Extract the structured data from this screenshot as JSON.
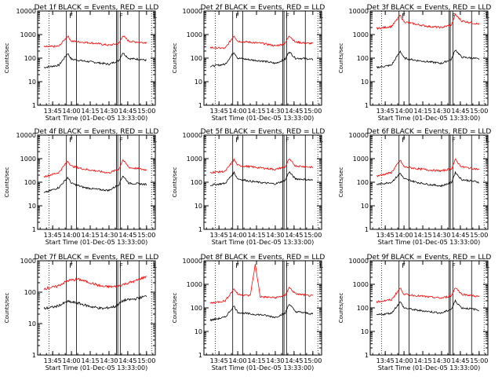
{
  "figure": {
    "shared": {
      "ylabel": "Counts/sec",
      "xlabel": "Start Time (01-Dec-05 13:33:00)",
      "xticklabels": [
        "13:45",
        "14:00",
        "14:15",
        "14:30",
        "14:45",
        "15:00"
      ],
      "yticklabels": [
        "1",
        "10",
        "100",
        "1000",
        "10000"
      ],
      "corner_marks": [
        "F",
        "F",
        "L"
      ],
      "series_colors": {
        "events": "#000000",
        "lld": "#ff0000"
      }
    }
  },
  "chart_data": [
    {
      "type": "line",
      "title": "Det 1f BLACK = Events, RED = LLD",
      "yscale": "log",
      "ylim": [
        1,
        10000
      ],
      "xlim": [
        "13:33",
        "15:07"
      ],
      "series": [
        {
          "values_at": [
            [
              "13:38",
              40
            ],
            [
              "13:50",
              50
            ],
            [
              "13:57",
              160
            ],
            [
              "14:00",
              90
            ],
            [
              "14:10",
              75
            ],
            [
              "14:20",
              65
            ],
            [
              "14:30",
              55
            ],
            [
              "14:38",
              80
            ],
            [
              "14:41",
              170
            ],
            [
              "14:46",
              95
            ],
            [
              "14:55",
              90
            ],
            [
              "15:00",
              80
            ]
          ]
        },
        {
          "values_at": [
            [
              "13:38",
              300
            ],
            [
              "13:50",
              320
            ],
            [
              "13:57",
              870
            ],
            [
              "14:00",
              520
            ],
            [
              "14:10",
              470
            ],
            [
              "14:20",
              420
            ],
            [
              "14:30",
              350
            ],
            [
              "14:38",
              420
            ],
            [
              "14:41",
              900
            ],
            [
              "14:46",
              520
            ],
            [
              "14:55",
              470
            ],
            [
              "15:00",
              460
            ]
          ]
        }
      ]
    },
    {
      "type": "line",
      "title": "Det 2f BLACK = Events, RED = LLD",
      "yscale": "log",
      "ylim": [
        1,
        10000
      ],
      "xlim": [
        "13:33",
        "15:07"
      ],
      "series": [
        {
          "values_at": [
            [
              "13:38",
              45
            ],
            [
              "13:50",
              55
            ],
            [
              "13:57",
              180
            ],
            [
              "14:00",
              100
            ],
            [
              "14:10",
              85
            ],
            [
              "14:20",
              75
            ],
            [
              "14:30",
              60
            ],
            [
              "14:38",
              90
            ],
            [
              "14:41",
              190
            ],
            [
              "14:46",
              100
            ],
            [
              "14:55",
              95
            ],
            [
              "15:00",
              85
            ]
          ]
        },
        {
          "values_at": [
            [
              "13:38",
              280
            ],
            [
              "13:50",
              260
            ],
            [
              "13:57",
              900
            ],
            [
              "14:00",
              520
            ],
            [
              "14:10",
              470
            ],
            [
              "14:20",
              420
            ],
            [
              "14:30",
              330
            ],
            [
              "14:38",
              420
            ],
            [
              "14:41",
              920
            ],
            [
              "14:46",
              480
            ],
            [
              "14:55",
              430
            ],
            [
              "15:00",
              420
            ]
          ]
        }
      ]
    },
    {
      "type": "line",
      "title": "Det 3f BLACK = Events, RED = LLD",
      "yscale": "log",
      "ylim": [
        1,
        10000
      ],
      "xlim": [
        "13:33",
        "15:07"
      ],
      "series": [
        {
          "values_at": [
            [
              "13:38",
              40
            ],
            [
              "13:50",
              50
            ],
            [
              "13:57",
              200
            ],
            [
              "14:00",
              100
            ],
            [
              "14:10",
              80
            ],
            [
              "14:20",
              70
            ],
            [
              "14:30",
              60
            ],
            [
              "14:38",
              90
            ],
            [
              "14:41",
              230
            ],
            [
              "14:46",
              110
            ],
            [
              "14:55",
              100
            ],
            [
              "15:00",
              90
            ]
          ]
        },
        {
          "values_at": [
            [
              "13:38",
              1800
            ],
            [
              "13:50",
              2200
            ],
            [
              "13:57",
              6500
            ],
            [
              "14:00",
              3500
            ],
            [
              "14:10",
              2700
            ],
            [
              "14:20",
              2200
            ],
            [
              "14:30",
              2000
            ],
            [
              "14:38",
              2600
            ],
            [
              "14:41",
              7000
            ],
            [
              "14:46",
              3800
            ],
            [
              "14:55",
              3100
            ],
            [
              "15:00",
              2800
            ]
          ]
        }
      ]
    },
    {
      "type": "line",
      "title": "Det 4f BLACK = Events, RED = LLD",
      "yscale": "log",
      "ylim": [
        1,
        10000
      ],
      "xlim": [
        "13:33",
        "15:07"
      ],
      "series": [
        {
          "values_at": [
            [
              "13:38",
              35
            ],
            [
              "13:50",
              60
            ],
            [
              "13:57",
              160
            ],
            [
              "14:00",
              90
            ],
            [
              "14:10",
              60
            ],
            [
              "14:20",
              50
            ],
            [
              "14:30",
              45
            ],
            [
              "14:38",
              80
            ],
            [
              "14:41",
              190
            ],
            [
              "14:46",
              90
            ],
            [
              "14:55",
              85
            ],
            [
              "15:00",
              80
            ]
          ]
        },
        {
          "values_at": [
            [
              "13:38",
              170
            ],
            [
              "13:50",
              260
            ],
            [
              "13:57",
              800
            ],
            [
              "14:00",
              480
            ],
            [
              "14:10",
              360
            ],
            [
              "14:20",
              300
            ],
            [
              "14:30",
              250
            ],
            [
              "14:38",
              360
            ],
            [
              "14:41",
              900
            ],
            [
              "14:46",
              420
            ],
            [
              "14:55",
              360
            ],
            [
              "15:00",
              330
            ]
          ]
        }
      ]
    },
    {
      "type": "line",
      "title": "Det 5f BLACK = Events, RED = LLD",
      "yscale": "log",
      "ylim": [
        1,
        10000
      ],
      "xlim": [
        "13:33",
        "15:07"
      ],
      "series": [
        {
          "values_at": [
            [
              "13:38",
              75
            ],
            [
              "13:50",
              90
            ],
            [
              "13:57",
              260
            ],
            [
              "14:00",
              140
            ],
            [
              "14:10",
              110
            ],
            [
              "14:20",
              95
            ],
            [
              "14:30",
              85
            ],
            [
              "14:38",
              120
            ],
            [
              "14:41",
              280
            ],
            [
              "14:46",
              140
            ],
            [
              "14:55",
              130
            ],
            [
              "15:00",
              120
            ]
          ]
        },
        {
          "values_at": [
            [
              "13:38",
              260
            ],
            [
              "13:50",
              290
            ],
            [
              "13:57",
              900
            ],
            [
              "14:00",
              520
            ],
            [
              "14:10",
              450
            ],
            [
              "14:20",
              400
            ],
            [
              "14:30",
              350
            ],
            [
              "14:38",
              450
            ],
            [
              "14:41",
              950
            ],
            [
              "14:46",
              500
            ],
            [
              "14:55",
              450
            ],
            [
              "15:00",
              430
            ]
          ]
        }
      ]
    },
    {
      "type": "line",
      "title": "Det 6f BLACK = Events, RED = LLD",
      "yscale": "log",
      "ylim": [
        1,
        10000
      ],
      "xlim": [
        "13:33",
        "15:07"
      ],
      "series": [
        {
          "values_at": [
            [
              "13:38",
              80
            ],
            [
              "13:50",
              100
            ],
            [
              "13:57",
              240
            ],
            [
              "14:00",
              140
            ],
            [
              "14:10",
              100
            ],
            [
              "14:20",
              80
            ],
            [
              "14:30",
              70
            ],
            [
              "14:38",
              100
            ],
            [
              "14:41",
              260
            ],
            [
              "14:46",
              130
            ],
            [
              "14:55",
              110
            ],
            [
              "15:00",
              100
            ]
          ]
        },
        {
          "values_at": [
            [
              "13:38",
              180
            ],
            [
              "13:50",
              260
            ],
            [
              "13:57",
              850
            ],
            [
              "14:00",
              450
            ],
            [
              "14:10",
              380
            ],
            [
              "14:20",
              330
            ],
            [
              "14:30",
              300
            ],
            [
              "14:38",
              380
            ],
            [
              "14:41",
              900
            ],
            [
              "14:46",
              450
            ],
            [
              "14:55",
              380
            ],
            [
              "15:00",
              350
            ]
          ]
        }
      ]
    },
    {
      "type": "line",
      "title": "Det 7f BLACK = Events, RED = LLD",
      "yscale": "log",
      "ylim": [
        1,
        1000
      ],
      "xlim": [
        "13:33",
        "15:07"
      ],
      "series": [
        {
          "values_at": [
            [
              "13:38",
              30
            ],
            [
              "13:48",
              35
            ],
            [
              "13:57",
              50
            ],
            [
              "14:05",
              45
            ],
            [
              "14:15",
              35
            ],
            [
              "14:25",
              30
            ],
            [
              "14:35",
              35
            ],
            [
              "14:42",
              55
            ],
            [
              "14:50",
              60
            ],
            [
              "15:00",
              75
            ]
          ]
        },
        {
          "values_at": [
            [
              "13:38",
              130
            ],
            [
              "13:48",
              150
            ],
            [
              "13:57",
              230
            ],
            [
              "14:05",
              260
            ],
            [
              "14:15",
              200
            ],
            [
              "14:25",
              150
            ],
            [
              "14:35",
              150
            ],
            [
              "14:42",
              180
            ],
            [
              "14:50",
              220
            ],
            [
              "15:00",
              320
            ]
          ]
        }
      ]
    },
    {
      "type": "line",
      "title": "Det 8f BLACK = Events, RED = LLD",
      "yscale": "log",
      "ylim": [
        1,
        10000
      ],
      "xlim": [
        "13:33",
        "15:07"
      ],
      "series": [
        {
          "values_at": [
            [
              "13:38",
              30
            ],
            [
              "13:50",
              40
            ],
            [
              "13:57",
              120
            ],
            [
              "14:00",
              65
            ],
            [
              "14:10",
              55
            ],
            [
              "14:20",
              50
            ],
            [
              "14:30",
              40
            ],
            [
              "14:38",
              60
            ],
            [
              "14:41",
              150
            ],
            [
              "14:46",
              70
            ],
            [
              "14:55",
              60
            ],
            [
              "15:00",
              55
            ]
          ]
        },
        {
          "values_at": [
            [
              "13:38",
              160
            ],
            [
              "13:50",
              200
            ],
            [
              "13:57",
              650
            ],
            [
              "14:00",
              380
            ],
            [
              "14:10",
              330
            ],
            [
              "14:14",
              7000
            ],
            [
              "14:18",
              300
            ],
            [
              "14:30",
              270
            ],
            [
              "14:38",
              340
            ],
            [
              "14:41",
              750
            ],
            [
              "14:46",
              400
            ],
            [
              "14:55",
              340
            ],
            [
              "15:00",
              320
            ]
          ]
        }
      ]
    },
    {
      "type": "line",
      "title": "Det 9f BLACK = Events, RED = LLD",
      "yscale": "log",
      "ylim": [
        1,
        10000
      ],
      "xlim": [
        "13:33",
        "15:07"
      ],
      "series": [
        {
          "values_at": [
            [
              "13:38",
              50
            ],
            [
              "13:50",
              60
            ],
            [
              "13:57",
              180
            ],
            [
              "14:00",
              100
            ],
            [
              "14:10",
              80
            ],
            [
              "14:20",
              70
            ],
            [
              "14:30",
              60
            ],
            [
              "14:38",
              90
            ],
            [
              "14:41",
              200
            ],
            [
              "14:46",
              100
            ],
            [
              "14:55",
              90
            ],
            [
              "15:00",
              80
            ]
          ]
        },
        {
          "values_at": [
            [
              "13:38",
              180
            ],
            [
              "13:50",
              220
            ],
            [
              "13:57",
              700
            ],
            [
              "14:00",
              380
            ],
            [
              "14:10",
              330
            ],
            [
              "14:20",
              290
            ],
            [
              "14:30",
              260
            ],
            [
              "14:38",
              330
            ],
            [
              "14:41",
              750
            ],
            [
              "14:46",
              380
            ],
            [
              "14:55",
              330
            ],
            [
              "15:00",
              300
            ]
          ]
        }
      ]
    }
  ]
}
